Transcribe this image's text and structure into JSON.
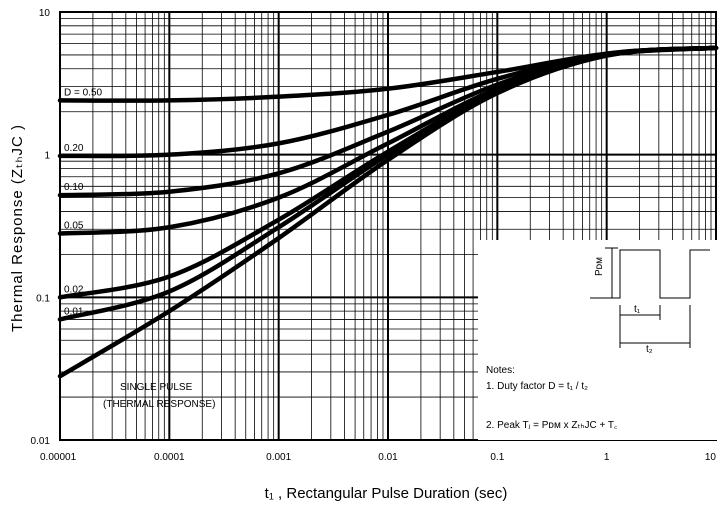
{
  "chart_data": {
    "type": "line",
    "title": "",
    "xlabel": "t₁ , Rectangular Pulse Duration (sec)",
    "ylabel": "Thermal Response (ZₜₕJC )",
    "xscale": "log",
    "yscale": "log",
    "xlim": [
      1e-05,
      10
    ],
    "ylim": [
      0.01,
      10
    ],
    "x_ticks": [
      {
        "value": 1e-05,
        "label": "0.00001"
      },
      {
        "value": 0.0001,
        "label": "0.0001"
      },
      {
        "value": 0.001,
        "label": "0.001"
      },
      {
        "value": 0.01,
        "label": "0.01"
      },
      {
        "value": 0.1,
        "label": "0.1"
      },
      {
        "value": 1,
        "label": "1"
      },
      {
        "value": 10,
        "label": "10"
      }
    ],
    "y_ticks": [
      {
        "value": 10,
        "label": "10"
      },
      {
        "value": 1,
        "label": "1"
      },
      {
        "value": 0.1,
        "label": "0.1"
      },
      {
        "value": 0.01,
        "label": "0.01"
      }
    ],
    "grid": true,
    "series": [
      {
        "label": "D = 0.50",
        "x": [
          1e-05,
          0.0001,
          0.001,
          0.01,
          0.1,
          1,
          10
        ],
        "y": [
          2.4,
          2.4,
          2.55,
          2.9,
          3.8,
          5.1,
          5.6
        ]
      },
      {
        "label": "0.20",
        "x": [
          1e-05,
          0.0001,
          0.001,
          0.01,
          0.1,
          1,
          10
        ],
        "y": [
          0.98,
          1.0,
          1.2,
          1.9,
          3.4,
          5.1,
          5.6
        ]
      },
      {
        "label": "0.10",
        "x": [
          1e-05,
          0.0001,
          0.001,
          0.01,
          0.1,
          1,
          10
        ],
        "y": [
          0.52,
          0.55,
          0.74,
          1.45,
          3.1,
          5.05,
          5.6
        ]
      },
      {
        "label": "0.05",
        "x": [
          1e-05,
          0.0001,
          0.001,
          0.01,
          0.1,
          1,
          10
        ],
        "y": [
          0.28,
          0.31,
          0.5,
          1.2,
          2.9,
          5.0,
          5.6
        ]
      },
      {
        "label": "0.02",
        "x": [
          1e-05,
          0.0001,
          0.001,
          0.01,
          0.1,
          1,
          10
        ],
        "y": [
          0.1,
          0.14,
          0.35,
          1.05,
          2.8,
          5.0,
          5.6
        ]
      },
      {
        "label": "0.01",
        "x": [
          1e-05,
          0.0001,
          0.001,
          0.01,
          0.1,
          1,
          10
        ],
        "y": [
          0.07,
          0.11,
          0.31,
          1.0,
          2.75,
          4.95,
          5.6
        ]
      },
      {
        "label": "SINGLE PULSE (THERMAL RESPONSE)",
        "x": [
          1e-05,
          0.0001,
          0.001,
          0.01,
          0.1,
          1,
          10
        ],
        "y": [
          0.028,
          0.08,
          0.26,
          0.92,
          2.7,
          4.95,
          5.6
        ]
      }
    ],
    "annotations": {
      "single_pulse_line1": "SINGLE PULSE",
      "single_pulse_line2": "(THERMAL RESPONSE)",
      "notes_title": "Notes:",
      "note1": "1. Duty factor D = t₁ / t₂",
      "note2": "2. Peak Tⱼ = Pᴅᴍ x ZₜₕJC + T꜀",
      "inset_pdm": "Pᴅᴍ",
      "inset_t1": "t₁",
      "inset_t2": "t₂"
    }
  }
}
